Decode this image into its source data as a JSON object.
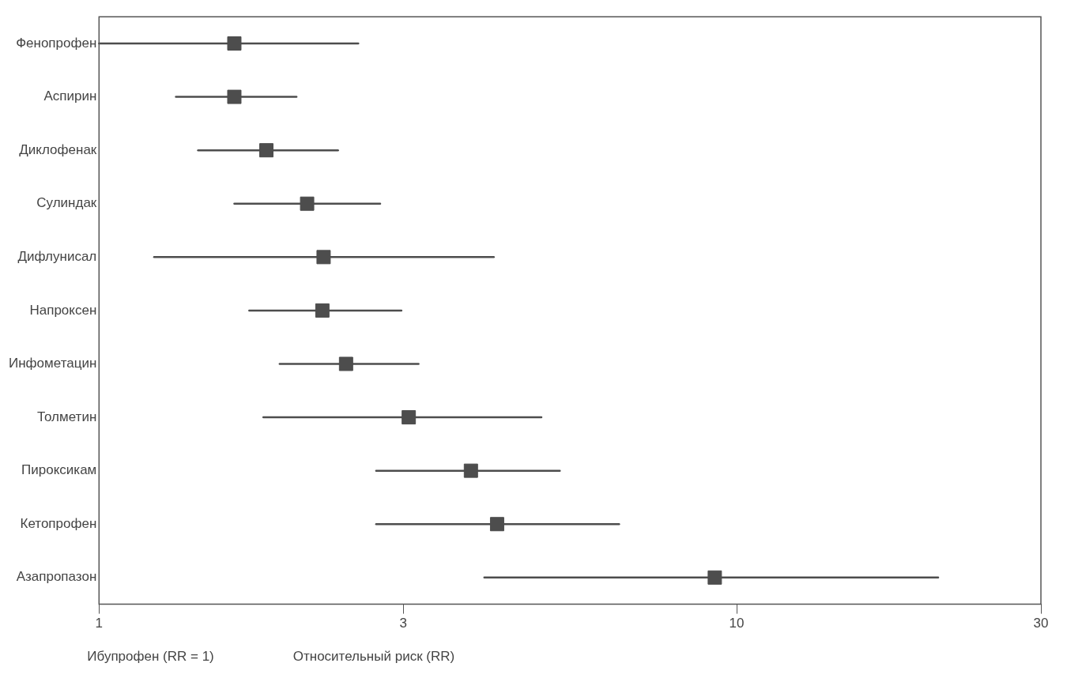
{
  "chart_data": {
    "type": "scatter",
    "xlabel": "Относительный риск (RR)",
    "annotations": [
      "Ибупрофен (RR = 1)"
    ],
    "categories": [
      "Фенопрофен",
      "Аспирин",
      "Диклофенак",
      "Сулиндак",
      "Дифлунисал",
      "Напроксен",
      "Инфометацин",
      "Толметин",
      "Пироксикам",
      "Кетопрофен",
      "Азапропазон"
    ],
    "values": [
      1.63,
      1.63,
      1.83,
      2.12,
      2.25,
      2.24,
      2.44,
      3.06,
      3.83,
      4.21,
      9.24
    ],
    "errors": [
      [
        1.0,
        2.55
      ],
      [
        1.32,
        2.04
      ],
      [
        1.43,
        2.37
      ],
      [
        1.63,
        2.76
      ],
      [
        1.22,
        4.16
      ],
      [
        1.72,
        2.98
      ],
      [
        1.92,
        3.17
      ],
      [
        1.81,
        4.94
      ],
      [
        2.72,
        5.28
      ],
      [
        2.72,
        6.54
      ],
      [
        4.02,
        20.7
      ]
    ],
    "color": "#4d4d4d",
    "orientation": "horizontal",
    "marker": "square",
    "log": "x",
    "xlim": [
      1,
      30
    ],
    "xticks": [
      1,
      3,
      10,
      30
    ],
    "grid": false,
    "legend": false
  }
}
